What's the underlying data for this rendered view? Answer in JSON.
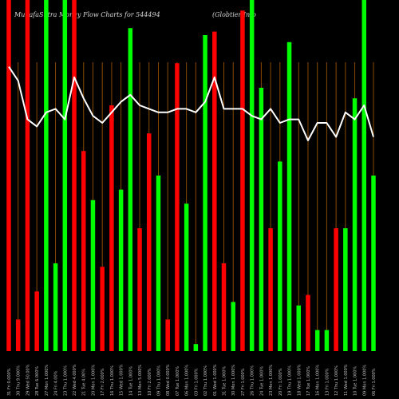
{
  "header": {
    "title": "MunafaSutra  Money Flow  Charts for 544494",
    "company": "(Globtier Info"
  },
  "chart_data": {
    "type": "bar",
    "title": "MunafaSutra  Money Flow  Charts for 544494",
    "subtitle": "(Globtier Info",
    "categories": [
      "Fri 31 Jan 2025",
      "Thu 30 Jan 2025",
      "Wed 29 Jan 2025",
      "Tue 28 Jan 2025",
      "Mon 27 Jan 2025",
      "Fri 24 Jan 2025",
      "Thu 23 Jan 2025",
      "Wed 22 Jan 2025",
      "Tue 21 Jan 2025",
      "Mon 20 Jan 2025",
      "Fri 17 Jan 2025",
      "Thu 16 Jan 2025",
      "Wed 15 Jan 2025",
      "Tue 14 Jan 2025",
      "Mon 13 Jan 2025",
      "Fri 10 Jan 2025",
      "Thu 09 Jan 2025",
      "Wed 08 Jan 2025",
      "Tue 07 Jan 2025",
      "Mon 06 Jan 2025",
      "Fri 03 Jan 2025",
      "Thu 02 Jan 2025",
      "Wed 01 Jan 2025",
      "Tue 31 Dec 2024",
      "Mon 30 Dec 2024",
      "Fri 27 Dec 2024",
      "Thu 26 Dec 2024",
      "Tue 24 Dec 2024",
      "Mon 23 Dec 2024",
      "Fri 20 Dec 2024",
      "Thu 19 Dec 2024",
      "Wed 18 Dec 2024",
      "Tue 17 Dec 2024",
      "Mon 16 Dec 2024",
      "Fri 13 Dec 2024",
      "Thu 12 Dec 2024",
      "Wed 11 Dec 2024",
      "Tue 10 Dec 2024",
      "Mon 09 Dec 2024",
      "Fri 06 Dec 2024"
    ],
    "tick_labels": [
      "31 Fri 0.000%",
      "30 Thu 9.000%",
      "29 Wed 50.00%",
      "28 Tue 6.000%",
      "27 Mon 1.000%",
      "24 Fri 4.00%",
      "23 Thu 1.000%",
      "22 Wed 4.000%",
      "21 Tue 4.00%",
      "20 Mon 1.000%",
      "17 Fri 2.000%",
      "16 Thu 1.000%",
      "15 Wed 1.000%",
      "14 Tue 1.000%",
      "13 Mon 5.000%",
      "10 Fri 2.000%",
      "09 Thu 1.000%",
      "08 Wed 0.000%",
      "07 Tue 1.000%",
      "06 Mon 1.000%",
      "03 Fri 1.000%",
      "02 Thu 1.000%",
      "01 Wed 1.000%",
      "31 Tue 1.000%",
      "30 Mon 1.000%",
      "27 Fri 1.000%",
      "26 Thu 1.000%",
      "24 Tue 1.000%",
      "23 Mon 1.000%",
      "20 Fri 1.000%",
      "19 Thu 1.000%",
      "18 Wed 1.000%",
      "17 Tue 1.000%",
      "16 Mon 1.000%",
      "13 Fri 1.000%",
      "12 Thu 1.000%",
      "11 Wed 1.000%",
      "10 Tue 1.000%",
      "09 Mon 1.000%",
      "06 Fri 1.000%"
    ],
    "series": [
      {
        "values": [
          100,
          9,
          100,
          17,
          100,
          25,
          100,
          100,
          57,
          43,
          24,
          70,
          46,
          92,
          35,
          62,
          50,
          9,
          82,
          42,
          2,
          90,
          91,
          25,
          14,
          97,
          100,
          75,
          35,
          54,
          88,
          13,
          16,
          6,
          6,
          35,
          35,
          72,
          100,
          50
        ],
        "colors": [
          "#ff0000",
          "#ff0000",
          "#ff0000",
          "#ff0000",
          "#00ff00",
          "#00ff00",
          "#00ff00",
          "#ff0000",
          "#ff0000",
          "#00ff00",
          "#ff0000",
          "#ff0000",
          "#00ff00",
          "#00ff00",
          "#ff0000",
          "#ff0000",
          "#00ff00",
          "#ff0000",
          "#ff0000",
          "#00ff00",
          "#00ff00",
          "#00ff00",
          "#ff0000",
          "#ff0000",
          "#00ff00",
          "#ff0000",
          "#00ff00",
          "#00ff00",
          "#ff0000",
          "#00ff00",
          "#00ff00",
          "#00ff00",
          "#ff0000",
          "#00ff00",
          "#00ff00",
          "#ff0000",
          "#00ff00",
          "#00ff00",
          "#00ff00",
          "#00ff00"
        ]
      },
      {
        "type": "line",
        "color": "#ffffff",
        "values": [
          81,
          77,
          66,
          64,
          68,
          69,
          66,
          78,
          72,
          67,
          65,
          68,
          71,
          73,
          70,
          69,
          68,
          68,
          69,
          69,
          68,
          71,
          78,
          69,
          69,
          69,
          67,
          66,
          69,
          65,
          66,
          66,
          60,
          65,
          65,
          61,
          68,
          66,
          70,
          61
        ]
      }
    ],
    "ylim": [
      0,
      100
    ],
    "grid": true,
    "legend": "none"
  }
}
